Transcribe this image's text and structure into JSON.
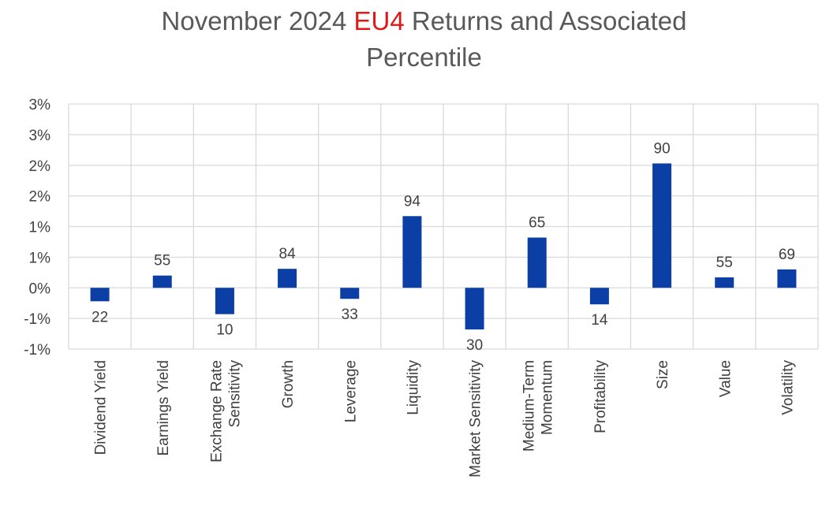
{
  "chart_data": {
    "type": "bar",
    "title_parts": {
      "before": "November 2024 ",
      "highlight": "EU4",
      "after": " Returns and Associated",
      "line2": "Percentile"
    },
    "categories": [
      [
        "Dividend Yield"
      ],
      [
        "Earnings Yield"
      ],
      [
        "Exchange Rate",
        "Sensitivity"
      ],
      [
        "Growth"
      ],
      [
        "Leverage"
      ],
      [
        "Liquidity"
      ],
      [
        "Market Sensitivity"
      ],
      [
        "Medium-Term",
        "Momentum"
      ],
      [
        "Profitability"
      ],
      [
        "Size"
      ],
      [
        "Value"
      ],
      [
        "Volatility"
      ]
    ],
    "values": [
      -0.22,
      0.2,
      -0.43,
      0.31,
      -0.18,
      1.17,
      -0.68,
      0.82,
      -0.27,
      2.03,
      0.17,
      0.3
    ],
    "percentiles": [
      "22",
      "55",
      "10",
      "84",
      "33",
      "94",
      "30",
      "65",
      "14",
      "90",
      "55",
      "69"
    ],
    "ylim": [
      -1,
      3
    ],
    "yticks": [
      -1,
      -0.5,
      0,
      0.5,
      1,
      1.5,
      2,
      2.5,
      3
    ],
    "ytick_labels": [
      "-1%",
      "-1%",
      "0%",
      "1%",
      "1%",
      "2%",
      "2%",
      "3%",
      "3%"
    ],
    "grid": true,
    "bar_color": "#0b3fa6",
    "highlight_color": "#e01818",
    "grid_color": "#d9d9d9"
  }
}
